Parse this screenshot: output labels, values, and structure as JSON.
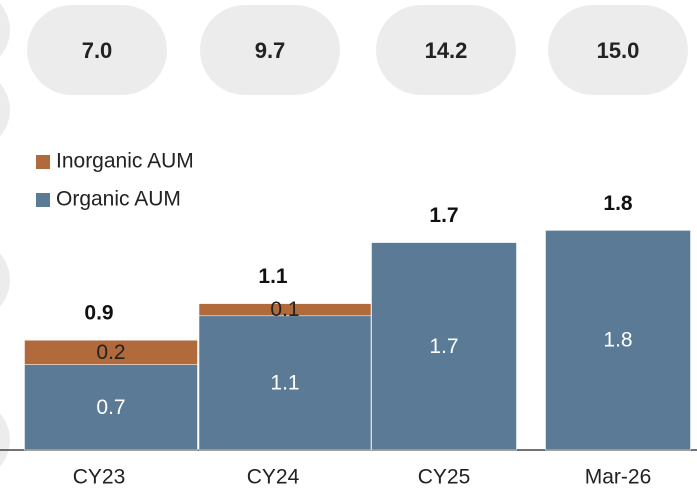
{
  "chart_data": {
    "type": "stacked-bar",
    "badges": {
      "values": [
        7.0,
        9.7,
        14.2,
        15.0
      ],
      "value_labels": [
        "7.0",
        "9.7",
        "14.2",
        "15.0"
      ]
    },
    "categories": [
      "CY23",
      "CY24",
      "CY25",
      "Mar-26"
    ],
    "series": [
      {
        "name": "Organic AUM",
        "color": "#5b7a95",
        "values": [
          0.7,
          1.1,
          1.7,
          1.8
        ]
      },
      {
        "name": "Inorganic AUM",
        "color": "#b06a3b",
        "values": [
          0.2,
          0.1,
          null,
          null
        ]
      }
    ],
    "totals": [
      0.9,
      1.1,
      1.7,
      1.8
    ]
  }
}
